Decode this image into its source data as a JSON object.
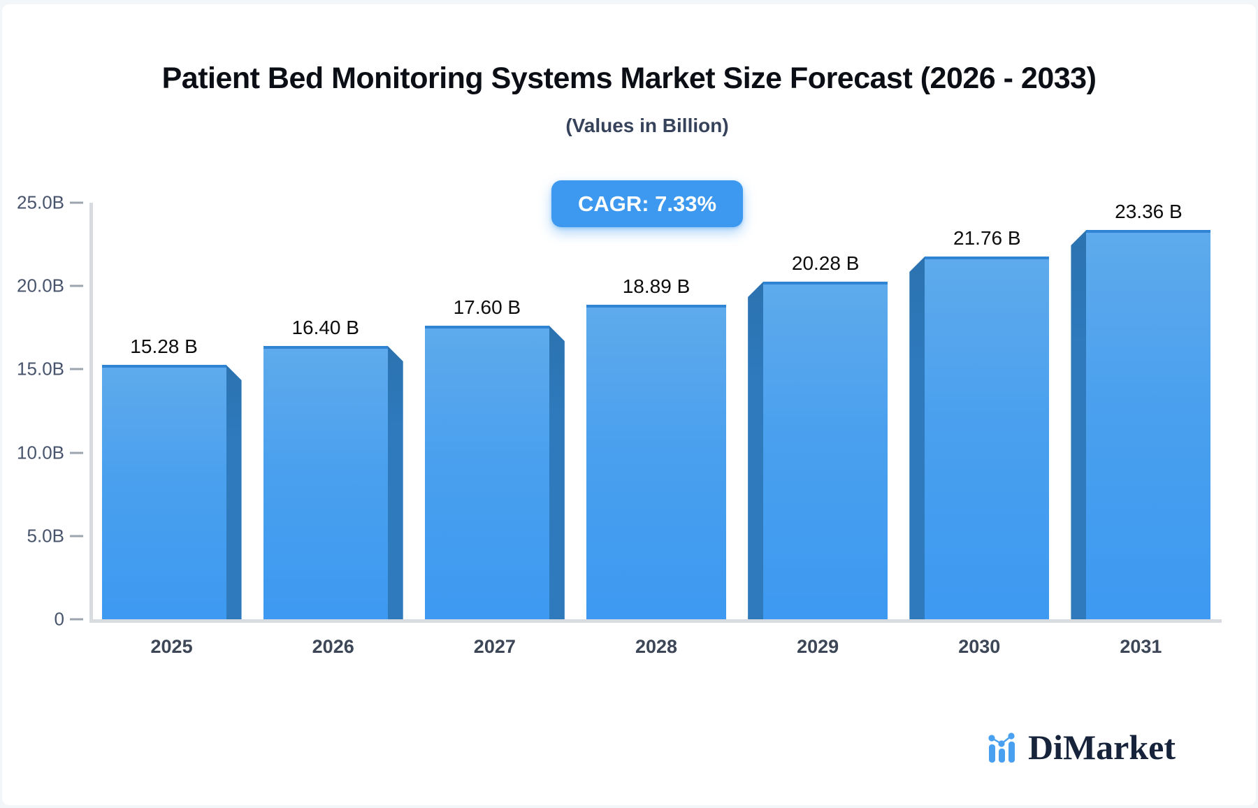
{
  "title": "Patient Bed Monitoring Systems Market Size Forecast (2026 - 2033)",
  "subtitle": "(Values in Billion)",
  "badge": {
    "label": "CAGR: 7.33%",
    "bg_color": "#3D99EF",
    "text_color": "#ffffff"
  },
  "chart_data": {
    "type": "bar",
    "categories": [
      "2025",
      "2026",
      "2027",
      "2028",
      "2029",
      "2030",
      "2031"
    ],
    "values": [
      15.28,
      16.4,
      17.6,
      18.89,
      20.28,
      21.76,
      23.36
    ],
    "value_labels": [
      "15.28 B",
      "16.40 B",
      "17.60 B",
      "18.89 B",
      "20.28 B",
      "21.76 B",
      "23.36 B"
    ],
    "title": "Patient Bed Monitoring Systems Market Size Forecast (2026 - 2033)",
    "subtitle": "(Values in Billion)",
    "xlabel": "",
    "ylabel": "",
    "ylim": [
      0,
      25
    ],
    "yticks": [
      25,
      20,
      15,
      10,
      5,
      0
    ],
    "ytick_labels": [
      "25.0B",
      "20.0B",
      "15.0B",
      "10.0B",
      "5.0B",
      "0"
    ],
    "grid": false,
    "legend": null,
    "bar_style": "3d-bevel",
    "colors": {
      "bar_top": "#5EAAEC",
      "bar_bottom": "#3D99F1",
      "bar_cap_line": "#2F84D3",
      "bar_side_face": "#2E7ABC",
      "axis_line": "#d8dce1",
      "tick_dash": "#9BA4AF",
      "tick_text": "#47546B",
      "category_text": "#3C4657",
      "value_text": "#0d0d0d"
    }
  },
  "logo": {
    "text": "DiMarket",
    "icon": "mini-bar-chart-icon",
    "icon_color": "#4AA0F0",
    "text_color": "#16233A"
  }
}
